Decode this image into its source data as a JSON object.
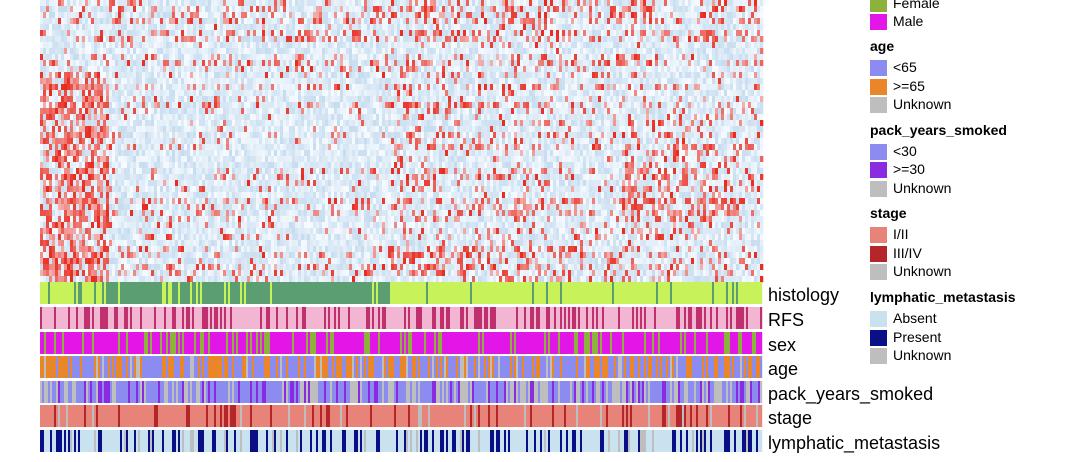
{
  "chart_data": {
    "type": "heatmap",
    "annotation_tracks": [
      {
        "name": "histology"
      },
      {
        "name": "RFS"
      },
      {
        "name": "sex"
      },
      {
        "name": "age"
      },
      {
        "name": "pack_years_smoked"
      },
      {
        "name": "stage"
      },
      {
        "name": "lymphatic_metastasis"
      }
    ],
    "colors": {
      "heat_low": "#c6dcef",
      "heat_mid": "#f7fbff",
      "heat_high": "#e8291c",
      "histology_a": "#c8f25a",
      "histology_b": "#5a9e72",
      "rfs_a": "#f3b6d2",
      "rfs_b": "#c0306e",
      "sex_female": "#8db23b",
      "sex_male": "#e316e8",
      "age_lt65": "#8c8cf0",
      "age_ge65": "#e9862a",
      "unknown": "#bebebe",
      "smoke_lt30": "#8c8cf0",
      "smoke_ge30": "#8a2be2",
      "stage_i_ii": "#e8837a",
      "stage_iii_iv": "#b5262b",
      "lymph_absent": "#c9e2ef",
      "lymph_present": "#0a0f88"
    }
  },
  "legend": {
    "sex_female_label": "Female",
    "sex_male_label": "Male",
    "age_title": "age",
    "age_lt65": "<65",
    "age_ge65": ">=65",
    "age_unknown": "Unknown",
    "smoke_title": "pack_years_smoked",
    "smoke_lt30": "<30",
    "smoke_ge30": ">=30",
    "smoke_unknown": "Unknown",
    "stage_title": "stage",
    "stage_i_ii": "I/II",
    "stage_iii_iv": "III/IV",
    "stage_unknown": "Unknown",
    "lymph_title": "lymphatic_metastasis",
    "lymph_absent": "Absent",
    "lymph_present": "Present",
    "lymph_unknown": "Unknown"
  }
}
